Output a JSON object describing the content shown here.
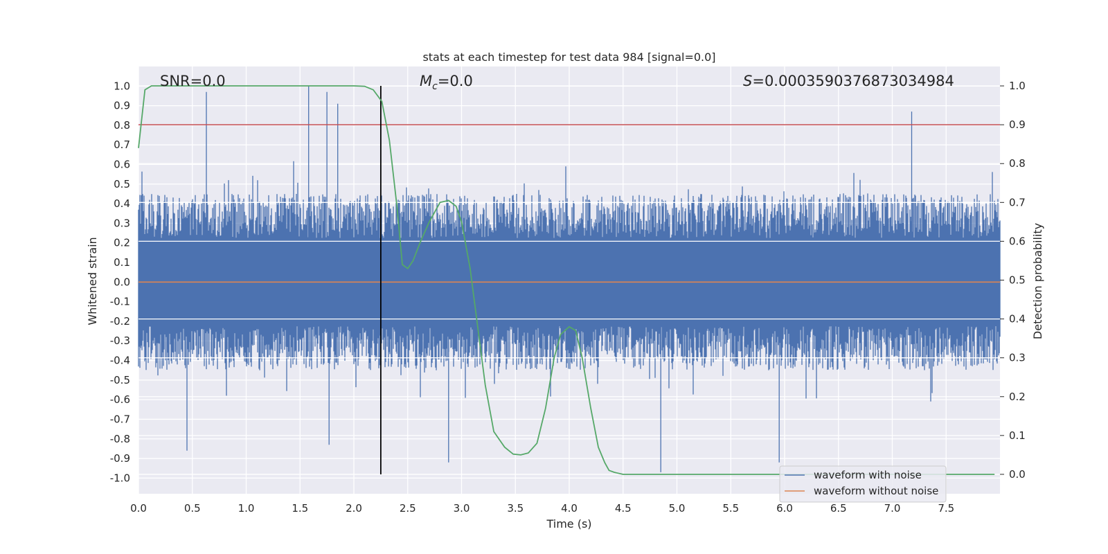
{
  "chart_data": {
    "type": "line",
    "title": "stats at each timestep for test data 984 [signal=0.0]",
    "xlabel": "Time (s)",
    "ylabel": "Whitened strain",
    "ylabel_right": "Detection probability",
    "xlim": [
      0.0,
      8.0
    ],
    "ylim": [
      -1.08,
      1.1
    ],
    "ylim_right": [
      -0.05,
      1.05
    ],
    "xticks": [
      "0.0",
      "0.5",
      "1.0",
      "1.5",
      "2.0",
      "2.5",
      "3.0",
      "3.5",
      "4.0",
      "4.5",
      "5.0",
      "5.5",
      "6.0",
      "6.5",
      "7.0",
      "7.5"
    ],
    "yticks": [
      "1.0",
      "0.9",
      "0.8",
      "0.7",
      "0.6",
      "0.5",
      "0.4",
      "0.3",
      "0.2",
      "0.1",
      "0.0",
      "-0.1",
      "-0.2",
      "-0.3",
      "-0.4",
      "-0.5",
      "-0.6",
      "-0.7",
      "-0.8",
      "-0.9",
      "-1.0"
    ],
    "yticks_right": [
      "1.0",
      "0.9",
      "0.8",
      "0.7",
      "0.6",
      "0.5",
      "0.4",
      "0.3",
      "0.2",
      "0.1",
      "0.0"
    ],
    "grid": true,
    "legend_position": "lower-right",
    "annotations": {
      "snr": "SNR=0.0",
      "mc_symbol": "M",
      "mc_subscript": "c",
      "mc_value": "=0.0",
      "s_symbol": "S",
      "s_value": "=0.0003590376873034984"
    },
    "marker_line_x": 2.25,
    "threshold_right": 0.9,
    "series": [
      {
        "name": "waveform with noise",
        "color": "#4c72b0",
        "axis": "left",
        "noise_envelope": {
          "typical_max": 0.45,
          "typical_min": -0.45,
          "peaks": [
            {
              "x": 0.63,
              "y": 0.97
            },
            {
              "x": 1.58,
              "y": 1.0
            },
            {
              "x": 1.75,
              "y": 0.97
            },
            {
              "x": 1.85,
              "y": 0.91
            },
            {
              "x": 7.18,
              "y": 0.87
            },
            {
              "x": 0.45,
              "y": -0.86
            },
            {
              "x": 2.88,
              "y": -0.92
            },
            {
              "x": 4.85,
              "y": -0.97
            },
            {
              "x": 5.95,
              "y": -0.92
            },
            {
              "x": 1.77,
              "y": -0.83
            }
          ]
        }
      },
      {
        "name": "waveform without noise",
        "color": "#dd8452",
        "axis": "left",
        "values_constant": 0.0
      },
      {
        "name": "Detection probability",
        "color": "#55a868",
        "axis": "right",
        "x": [
          0.0,
          0.06,
          0.12,
          0.2,
          1.5,
          2.0,
          2.1,
          2.18,
          2.26,
          2.33,
          2.4,
          2.45,
          2.5,
          2.55,
          2.62,
          2.7,
          2.8,
          2.88,
          2.95,
          3.0,
          3.08,
          3.15,
          3.22,
          3.3,
          3.4,
          3.48,
          3.55,
          3.62,
          3.7,
          3.78,
          3.86,
          3.92,
          4.0,
          4.06,
          4.12,
          4.2,
          4.27,
          4.33,
          4.37,
          4.42,
          4.5,
          5.0,
          6.0,
          7.0,
          7.95
        ],
        "values": [
          0.84,
          0.99,
          1.0,
          1.0,
          1.0,
          1.0,
          0.999,
          0.99,
          0.96,
          0.86,
          0.69,
          0.54,
          0.53,
          0.55,
          0.6,
          0.65,
          0.7,
          0.705,
          0.69,
          0.65,
          0.53,
          0.38,
          0.23,
          0.11,
          0.07,
          0.052,
          0.05,
          0.055,
          0.08,
          0.17,
          0.3,
          0.36,
          0.38,
          0.37,
          0.3,
          0.17,
          0.07,
          0.03,
          0.01,
          0.005,
          0.0,
          0.0,
          0.0,
          0.0,
          0.0
        ]
      }
    ]
  }
}
